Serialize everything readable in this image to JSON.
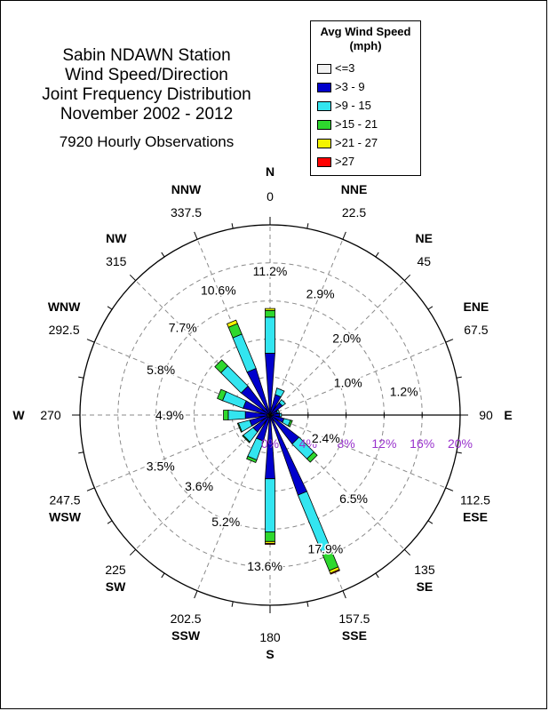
{
  "title_lines": [
    "Sabin NDAWN Station",
    "Wind Speed/Direction",
    "Joint Frequency Distribution",
    "November 2002 - 2012"
  ],
  "subtitle": "7920 Hourly Observations",
  "legend": {
    "title_lines": [
      "Avg Wind Speed",
      "(mph)"
    ],
    "items": [
      {
        "label": "<=3",
        "color": "#f2f2f2"
      },
      {
        "label": ">3 - 9",
        "color": "#0000cc"
      },
      {
        "label": ">9 - 15",
        "color": "#33e5f0"
      },
      {
        "label": ">15 - 21",
        "color": "#2ed82e"
      },
      {
        "label": ">21 - 27",
        "color": "#f4f400"
      },
      {
        "label": ">27",
        "color": "#ff0000"
      }
    ]
  },
  "chart_data": {
    "type": "wind-rose",
    "radial_ticks": [
      "0%",
      "4%",
      "8%",
      "12%",
      "16%",
      "20%"
    ],
    "rmax": 20,
    "directions": [
      {
        "name": "N",
        "degree": "0",
        "total": "11.2%",
        "segments": [
          0.2,
          6.3,
          3.8,
          0.7,
          0.2,
          0
        ]
      },
      {
        "name": "NNE",
        "degree": "22.5",
        "total": "2.9%",
        "segments": [
          0.3,
          1.9,
          0.7,
          0,
          0,
          0
        ]
      },
      {
        "name": "NE",
        "degree": "45",
        "total": "2.0%",
        "segments": [
          0.2,
          1.4,
          0.4,
          0,
          0,
          0
        ]
      },
      {
        "name": "ENE",
        "degree": "67.5",
        "total": "1.0%",
        "segments": [
          0.2,
          0.6,
          0.2,
          0,
          0,
          0
        ]
      },
      {
        "name": "E",
        "degree": "90",
        "total": "1.2%",
        "segments": [
          0.3,
          0.7,
          0.2,
          0,
          0,
          0
        ]
      },
      {
        "name": "ESE",
        "degree": "112.5",
        "total": "2.4%",
        "segments": [
          0.2,
          1.3,
          0.7,
          0.2,
          0,
          0
        ]
      },
      {
        "name": "SE",
        "degree": "135",
        "total": "6.5%",
        "segments": [
          0.2,
          3.6,
          2.2,
          0.5,
          0,
          0
        ]
      },
      {
        "name": "SSE",
        "degree": "157.5",
        "total": "17.9%",
        "segments": [
          0.2,
          8.7,
          6.5,
          2.1,
          0.3,
          0.1
        ]
      },
      {
        "name": "S",
        "degree": "180",
        "total": "13.6%",
        "segments": [
          0.2,
          6.5,
          5.6,
          1.0,
          0.2,
          0.1
        ]
      },
      {
        "name": "SSW",
        "degree": "202.5",
        "total": "5.2%",
        "segments": [
          0.2,
          2.6,
          2.1,
          0.3,
          0,
          0
        ]
      },
      {
        "name": "SW",
        "degree": "225",
        "total": "3.6%",
        "segments": [
          0.3,
          1.9,
          1.3,
          0.1,
          0,
          0
        ]
      },
      {
        "name": "WSW",
        "degree": "247.5",
        "total": "3.5%",
        "segments": [
          0.3,
          1.9,
          1.2,
          0.1,
          0,
          0
        ]
      },
      {
        "name": "W",
        "degree": "270",
        "total": "4.9%",
        "segments": [
          0.3,
          2.3,
          1.8,
          0.5,
          0,
          0
        ]
      },
      {
        "name": "WNW",
        "degree": "292.5",
        "total": "5.8%",
        "segments": [
          0.3,
          2.6,
          2.3,
          0.6,
          0,
          0
        ]
      },
      {
        "name": "NW",
        "degree": "315",
        "total": "7.7%",
        "segments": [
          0.2,
          3.6,
          3.0,
          0.9,
          0,
          0
        ]
      },
      {
        "name": "NNW",
        "degree": "337.5",
        "total": "10.6%",
        "segments": [
          0.2,
          4.9,
          3.9,
          1.2,
          0.4,
          0
        ]
      }
    ]
  }
}
